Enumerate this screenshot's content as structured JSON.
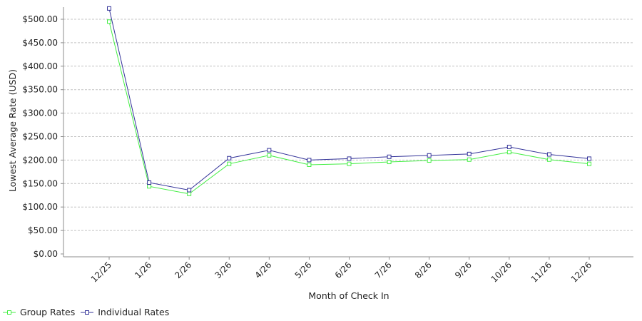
{
  "chart_data": {
    "type": "line",
    "title": "",
    "xlabel": "Month of Check In",
    "ylabel": "Lowest Average Rate (USD)",
    "categories": [
      "12/25",
      "1/26",
      "2/26",
      "3/26",
      "4/26",
      "5/26",
      "6/26",
      "7/26",
      "8/26",
      "9/26",
      "10/26",
      "11/26",
      "12/26"
    ],
    "series": [
      {
        "name": "Group Rates",
        "color": "#44ee44",
        "values": [
          495,
          144,
          128,
          192,
          210,
          190,
          192,
          196,
          199,
          201,
          217,
          201,
          192
        ]
      },
      {
        "name": "Individual Rates",
        "color": "#333399",
        "values": [
          523,
          152,
          136,
          204,
          221,
          200,
          203,
          207,
          210,
          213,
          228,
          212,
          203
        ]
      }
    ],
    "ylim": [
      0,
      525
    ],
    "yticks": [
      0,
      50,
      100,
      150,
      200,
      250,
      300,
      350,
      400,
      450,
      500
    ],
    "ytick_labels": [
      "$0.00",
      "$50.00",
      "$100.00",
      "$150.00",
      "$200.00",
      "$250.00",
      "$300.00",
      "$350.00",
      "$400.00",
      "$450.00",
      "$500.00"
    ],
    "grid": true,
    "legend": "bottom-left"
  }
}
